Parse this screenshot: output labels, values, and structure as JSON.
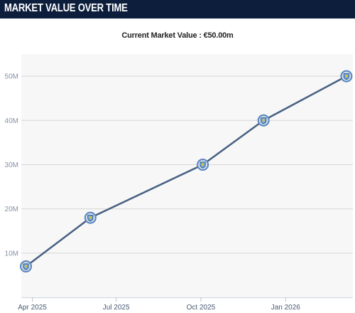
{
  "header": {
    "title": "MARKET VALUE OVER TIME"
  },
  "chart_data": {
    "type": "line",
    "subtitle": "Current Market Value : €50.00m",
    "x": [
      "2025-03-25",
      "2025-06-03",
      "2025-10-03",
      "2025-12-08",
      "2026-03-08"
    ],
    "values": [
      7,
      18,
      30,
      40,
      50
    ],
    "unit": "M",
    "ylim": [
      0,
      55
    ],
    "yticks": [
      10,
      20,
      30,
      40,
      50
    ],
    "ytick_labels": [
      "10M",
      "20M",
      "30M",
      "40M",
      "50M"
    ],
    "xticks": [
      "2025-04-01",
      "2025-07-01",
      "2025-10-01",
      "2026-01-01"
    ],
    "xtick_labels": [
      "Apr 2025",
      "Jul 2025",
      "Oct 2025",
      "Jan 2026"
    ],
    "xlim": [
      "2025-03-20",
      "2026-03-15"
    ],
    "grid": true,
    "colors": {
      "line": "#475f82",
      "marker_ring": "#5b85bd",
      "marker_fill": "#c9dcee",
      "header_bg": "#0d1e3c"
    },
    "marker_icon": "club-crest-icon"
  }
}
